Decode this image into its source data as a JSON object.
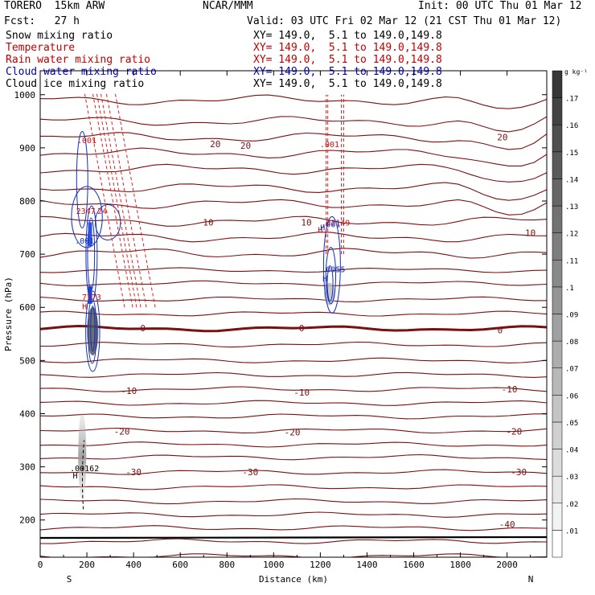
{
  "header": {
    "model": "TORERO  15km ARW",
    "org": "NCAR/MMM",
    "init": "Init: 00 UTC Thu 01 Mar 12",
    "fcst": "Fcst:   27 h",
    "valid": "Valid: 03 UTC Fri 02 Mar 12 (21 CST Thu 01 Mar 12)"
  },
  "fields": [
    {
      "label": "Snow mixing ratio",
      "xy": "XY= 149.0,  5.1 to 149.0,149.8",
      "color": "#000000"
    },
    {
      "label": "Temperature",
      "xy": "XY= 149.0,  5.1 to 149.0,149.8",
      "color": "#c00000"
    },
    {
      "label": "Rain water mixing ratio",
      "xy": "XY= 149.0,  5.1 to 149.0,149.8",
      "color": "#c00000"
    },
    {
      "label": "Cloud water mixing ratio",
      "xy": "XY= 149.0,  5.1 to 149.0,149.8",
      "color": "#0000c0"
    },
    {
      "label": "Cloud ice mixing ratio",
      "xy": "XY= 149.0,  5.1 to 149.0,149.8",
      "color": "#000000"
    }
  ],
  "colorbar": {
    "unit": "g kg⁻¹",
    "levels": [
      0.01,
      0.02,
      0.03,
      0.04,
      0.05,
      0.06,
      0.07,
      0.08,
      0.09,
      0.1,
      0.11,
      0.12,
      0.13,
      0.14,
      0.15,
      0.16,
      0.17
    ],
    "labels": [
      ".01",
      ".02",
      ".03",
      ".04",
      ".05",
      ".06",
      ".07",
      ".08",
      ".09",
      ".1",
      ".11",
      ".12",
      ".13",
      ".14",
      ".15",
      ".16",
      ".17"
    ]
  },
  "chart_data": {
    "type": "cross-section contour",
    "xlabel": "Distance (km)",
    "ylabel": "Pressure (hPa)",
    "xlim": [
      0,
      2170
    ],
    "ylim": [
      1045,
      130
    ],
    "xticks": [
      0,
      200,
      400,
      600,
      800,
      1000,
      1200,
      1400,
      1600,
      1800,
      2000
    ],
    "yticks": [
      200,
      300,
      400,
      500,
      600,
      700,
      800,
      900,
      1000
    ],
    "left_end_label": "S",
    "right_end_label": "N",
    "temperature_isotherm_pressures_hPa": [
      132,
      160,
      185,
      210,
      235,
      262,
      290,
      318,
      342,
      368,
      395,
      420,
      446,
      473,
      500,
      530,
      560,
      588,
      615,
      645,
      670,
      702,
      732,
      762,
      795,
      825,
      860,
      890,
      920,
      950,
      990
    ],
    "temperature_labels": [
      {
        "value": "-40",
        "x": 2000,
        "p": 192
      },
      {
        "value": "-30",
        "x": 400,
        "p": 290
      },
      {
        "value": "-30",
        "x": 900,
        "p": 290
      },
      {
        "value": "-30",
        "x": 2050,
        "p": 290
      },
      {
        "value": "-20",
        "x": 350,
        "p": 367
      },
      {
        "value": "-20",
        "x": 1080,
        "p": 365
      },
      {
        "value": "-20",
        "x": 2030,
        "p": 367
      },
      {
        "value": "-10",
        "x": 380,
        "p": 443
      },
      {
        "value": "-10",
        "x": 1120,
        "p": 440
      },
      {
        "value": "-10",
        "x": 2010,
        "p": 446
      },
      {
        "value": "0",
        "x": 440,
        "p": 561
      },
      {
        "value": "0",
        "x": 1120,
        "p": 561
      },
      {
        "value": "0",
        "x": 1970,
        "p": 557
      },
      {
        "value": "10",
        "x": 720,
        "p": 760
      },
      {
        "value": "10",
        "x": 1140,
        "p": 760
      },
      {
        "value": "10",
        "x": 2100,
        "p": 740
      },
      {
        "value": "20",
        "x": 750,
        "p": 907
      },
      {
        "value": "20",
        "x": 880,
        "p": 904
      },
      {
        "value": "20",
        "x": 1980,
        "p": 920
      }
    ],
    "rain_labels": [
      {
        "value": ".001",
        "x": 200,
        "p": 915
      },
      {
        "value": ".001",
        "x": 1240,
        "p": 907
      },
      {
        "value": "7773",
        "x": 220,
        "p": 620
      },
      {
        "value": "H",
        "x": 190,
        "p": 603
      },
      {
        "value": "2347",
        "x": 195,
        "p": 782
      },
      {
        "value": ".24",
        "x": 255,
        "p": 782
      },
      {
        "value": "H",
        "x": 1200,
        "p": 746
      },
      {
        "value": ".02149",
        "x": 1265,
        "p": 760
      }
    ],
    "cloud_labels": [
      {
        "value": "H",
        "x": 1220,
        "p": 655
      },
      {
        "value": ".0055",
        "x": 1255,
        "p": 672
      },
      {
        "value": "H",
        "x": 1210,
        "p": 751
      },
      {
        "value": ".001",
        "x": 1245,
        "p": 757
      },
      {
        "value": ".001",
        "x": 190,
        "p": 726
      }
    ],
    "snow_labels": [
      {
        "value": "H",
        "x": 150,
        "p": 284
      },
      {
        "value": ".00162",
        "x": 190,
        "p": 298
      }
    ]
  }
}
